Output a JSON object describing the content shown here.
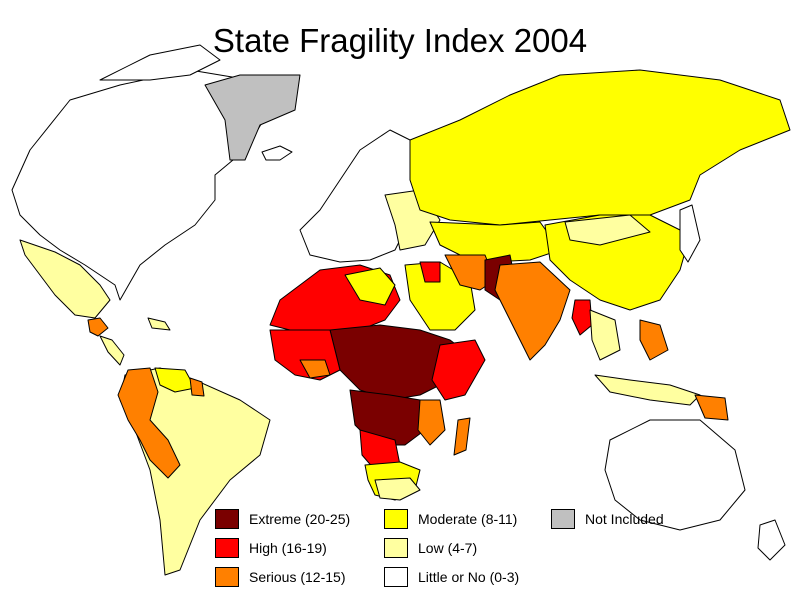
{
  "title": "State Fragility Index 2004",
  "legend": [
    {
      "label": "Extreme (20-25)",
      "color": "#7a0000"
    },
    {
      "label": "High (16-19)",
      "color": "#ff0000"
    },
    {
      "label": "Serious (12-15)",
      "color": "#ff8000"
    },
    {
      "label": "Moderate (8-11)",
      "color": "#ffff00"
    },
    {
      "label": "Low (4-7)",
      "color": "#ffffa0"
    },
    {
      "label": "Little or No (0-3)",
      "color": "#ffffff"
    },
    {
      "label": "Not Included",
      "color": "#c0c0c0"
    }
  ]
}
